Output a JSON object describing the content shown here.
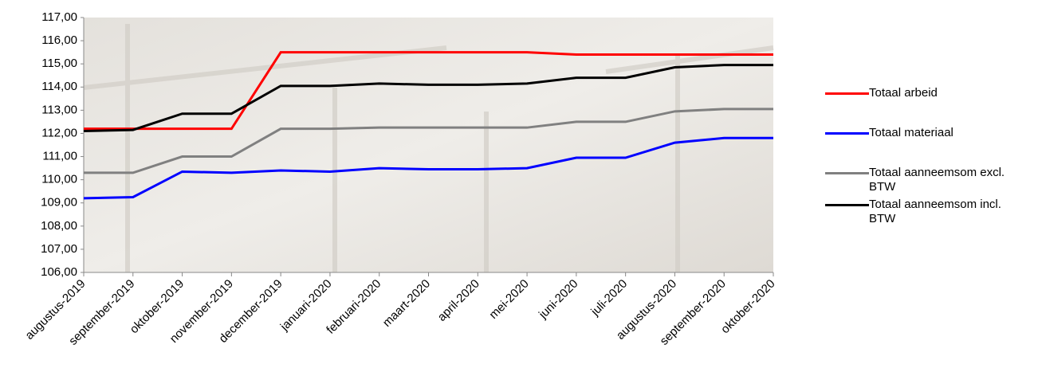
{
  "chart_data": {
    "type": "line",
    "categories": [
      "augustus-2019",
      "september-2019",
      "oktober-2019",
      "november-2019",
      "december-2019",
      "januari-2020",
      "februari-2020",
      "maart-2020",
      "april-2020",
      "mei-2020",
      "juni-2020",
      "juli-2020",
      "augustus-2020",
      "september-2020",
      "oktober-2020"
    ],
    "series": [
      {
        "name": "Totaal arbeid",
        "color": "#ff0000",
        "values": [
          112.2,
          112.2,
          112.2,
          112.2,
          115.5,
          115.5,
          115.5,
          115.5,
          115.5,
          115.5,
          115.4,
          115.4,
          115.4,
          115.4,
          115.4
        ]
      },
      {
        "name": "Totaal materiaal",
        "color": "#0000ff",
        "values": [
          109.2,
          109.25,
          110.35,
          110.3,
          110.4,
          110.35,
          110.5,
          110.45,
          110.45,
          110.5,
          110.95,
          110.95,
          111.6,
          111.8,
          111.8
        ]
      },
      {
        "name": "Totaal aanneemsom excl. BTW",
        "color": "#808080",
        "values": [
          110.3,
          110.3,
          111.0,
          111.0,
          112.2,
          112.2,
          112.25,
          112.25,
          112.25,
          112.25,
          112.5,
          112.5,
          112.95,
          113.05,
          113.05
        ]
      },
      {
        "name": "Totaal aanneemsom incl. BTW",
        "color": "#000000",
        "values": [
          112.1,
          112.15,
          112.85,
          112.85,
          114.05,
          114.05,
          114.15,
          114.1,
          114.1,
          114.15,
          114.4,
          114.4,
          114.85,
          114.95,
          114.95
        ]
      }
    ],
    "ylim": [
      106,
      117
    ],
    "yticks": [
      {
        "value": 106,
        "label": "106,00"
      },
      {
        "value": 107,
        "label": "107,00"
      },
      {
        "value": 108,
        "label": "108,00"
      },
      {
        "value": 109,
        "label": "109,00"
      },
      {
        "value": 110,
        "label": "110,00"
      },
      {
        "value": 111,
        "label": "111,00"
      },
      {
        "value": 112,
        "label": "112,00"
      },
      {
        "value": 113,
        "label": "113,00"
      },
      {
        "value": 114,
        "label": "114,00"
      },
      {
        "value": 115,
        "label": "115,00"
      },
      {
        "value": 116,
        "label": "116,00"
      },
      {
        "value": 117,
        "label": "117,00"
      }
    ],
    "legend": "right"
  }
}
